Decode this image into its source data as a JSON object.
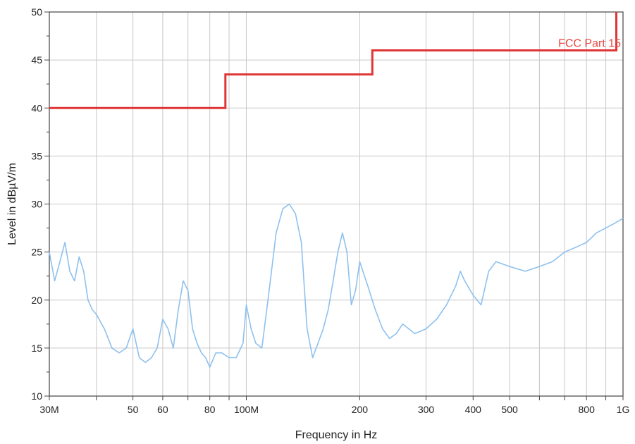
{
  "chart_data": {
    "type": "line",
    "title": "",
    "xlabel": "Frequency in Hz",
    "ylabel": "Level in dBµV/m",
    "x_scale": "log",
    "xlim": [
      30000000,
      1000000000
    ],
    "ylim": [
      10,
      50
    ],
    "grid": true,
    "x_ticks": [
      {
        "value": 30000000,
        "label": "30M"
      },
      {
        "value": 50000000,
        "label": "50"
      },
      {
        "value": 60000000,
        "label": "60"
      },
      {
        "value": 80000000,
        "label": "80"
      },
      {
        "value": 100000000,
        "label": "100M"
      },
      {
        "value": 200000000,
        "label": "200"
      },
      {
        "value": 300000000,
        "label": "300"
      },
      {
        "value": 400000000,
        "label": "400"
      },
      {
        "value": 500000000,
        "label": "500"
      },
      {
        "value": 800000000,
        "label": "800"
      },
      {
        "value": 1000000000,
        "label": "1G"
      }
    ],
    "y_ticks": [
      10,
      15,
      20,
      25,
      30,
      35,
      40,
      45,
      50
    ],
    "annotation": {
      "text": "FCC Part 15",
      "color": "#e8453c"
    },
    "series": [
      {
        "name": "FCC Part 15",
        "color": "#e03535",
        "step": true,
        "x": [
          30000000,
          88000000,
          88000000,
          216000000,
          216000000,
          960000000,
          960000000
        ],
        "y": [
          40,
          40,
          43.5,
          43.5,
          46,
          46,
          50
        ]
      },
      {
        "name": "",
        "color": "#8ec1ee",
        "x": [
          30000000,
          31000000,
          32000000,
          33000000,
          34000000,
          35000000,
          36000000,
          37000000,
          38000000,
          39000000,
          40000000,
          42000000,
          44000000,
          46000000,
          48000000,
          50000000,
          52000000,
          54000000,
          56000000,
          58000000,
          60000000,
          62000000,
          64000000,
          66000000,
          68000000,
          70000000,
          72000000,
          74000000,
          76000000,
          78000000,
          80000000,
          83000000,
          86000000,
          90000000,
          94000000,
          98000000,
          100000000,
          103000000,
          106000000,
          110000000,
          115000000,
          120000000,
          125000000,
          130000000,
          135000000,
          140000000,
          145000000,
          150000000,
          155000000,
          160000000,
          165000000,
          170000000,
          175000000,
          180000000,
          185000000,
          190000000,
          195000000,
          200000000,
          210000000,
          220000000,
          230000000,
          240000000,
          250000000,
          260000000,
          270000000,
          280000000,
          300000000,
          320000000,
          340000000,
          360000000,
          370000000,
          380000000,
          400000000,
          420000000,
          440000000,
          460000000,
          500000000,
          550000000,
          600000000,
          650000000,
          700000000,
          750000000,
          800000000,
          850000000,
          900000000,
          950000000,
          1000000000
        ],
        "y": [
          25,
          22,
          24,
          26,
          23,
          22,
          24.5,
          23,
          20,
          19,
          18.5,
          17,
          15,
          14.5,
          15,
          17,
          14,
          13.5,
          14,
          15,
          18,
          17,
          15,
          19,
          22,
          21,
          17,
          15.5,
          14.5,
          14,
          13,
          14.5,
          14.5,
          14,
          14,
          15.5,
          19.5,
          17,
          15.5,
          15,
          21,
          27,
          29.5,
          30,
          29,
          26,
          17,
          14,
          15.5,
          17,
          19,
          22,
          25,
          27,
          25,
          19.5,
          21,
          24,
          21.5,
          19,
          17,
          16,
          16.5,
          17.5,
          17,
          16.5,
          17,
          18,
          19.5,
          21.5,
          23,
          22,
          20.5,
          19.5,
          23,
          24,
          23.5,
          23,
          23.5,
          24,
          25,
          25.5,
          26,
          27,
          27.5,
          28,
          28.5
        ]
      }
    ]
  }
}
